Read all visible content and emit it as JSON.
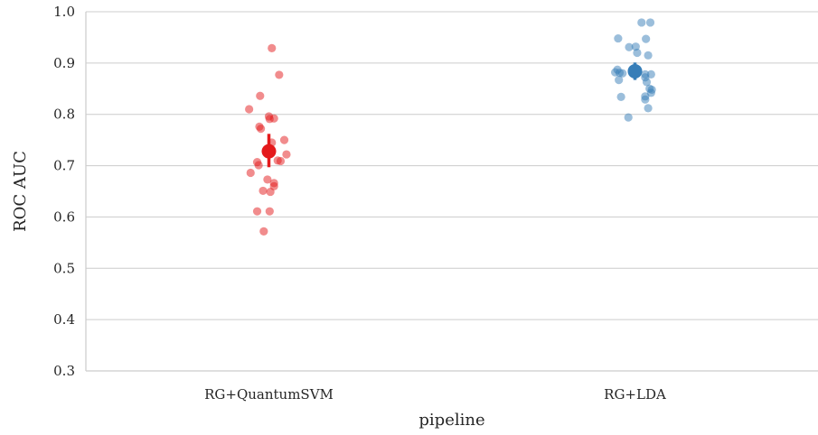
{
  "chart_data": {
    "type": "scatter",
    "xlabel": "pipeline",
    "ylabel": "ROC AUC",
    "ylim": [
      0.3,
      1.0
    ],
    "yticks": [
      "0.3",
      "0.4",
      "0.5",
      "0.6",
      "0.7",
      "0.8",
      "0.9",
      "1.0"
    ],
    "grid": "horizontal",
    "categories": [
      "RG+QuantumSVM",
      "RG+LDA"
    ],
    "series": [
      {
        "category": "RG+QuantumSVM",
        "color": "#e41a1c",
        "mean": 0.728,
        "ci": [
          0.697,
          0.762
        ],
        "points": [
          {
            "jitter": 0.04,
            "y": 0.929
          },
          {
            "jitter": 0.14,
            "y": 0.877
          },
          {
            "jitter": -0.12,
            "y": 0.836
          },
          {
            "jitter": -0.27,
            "y": 0.81
          },
          {
            "jitter": 0.0,
            "y": 0.796
          },
          {
            "jitter": 0.01,
            "y": 0.791
          },
          {
            "jitter": 0.07,
            "y": 0.792
          },
          {
            "jitter": -0.13,
            "y": 0.776
          },
          {
            "jitter": -0.11,
            "y": 0.772
          },
          {
            "jitter": 0.21,
            "y": 0.75
          },
          {
            "jitter": 0.04,
            "y": 0.745
          },
          {
            "jitter": 0.24,
            "y": 0.722
          },
          {
            "jitter": 0.12,
            "y": 0.71
          },
          {
            "jitter": 0.16,
            "y": 0.709
          },
          {
            "jitter": -0.16,
            "y": 0.707
          },
          {
            "jitter": -0.14,
            "y": 0.701
          },
          {
            "jitter": -0.25,
            "y": 0.686
          },
          {
            "jitter": -0.02,
            "y": 0.673
          },
          {
            "jitter": 0.07,
            "y": 0.666
          },
          {
            "jitter": 0.07,
            "y": 0.66
          },
          {
            "jitter": -0.08,
            "y": 0.651
          },
          {
            "jitter": 0.02,
            "y": 0.649
          },
          {
            "jitter": -0.16,
            "y": 0.611
          },
          {
            "jitter": 0.01,
            "y": 0.611
          },
          {
            "jitter": -0.07,
            "y": 0.572
          }
        ]
      },
      {
        "category": "RG+LDA",
        "color": "#377eb8",
        "mean": 0.884,
        "ci": [
          0.867,
          0.901
        ],
        "points": [
          {
            "jitter": 0.09,
            "y": 0.979
          },
          {
            "jitter": 0.21,
            "y": 0.979
          },
          {
            "jitter": -0.23,
            "y": 0.948
          },
          {
            "jitter": 0.15,
            "y": 0.947
          },
          {
            "jitter": -0.08,
            "y": 0.931
          },
          {
            "jitter": 0.01,
            "y": 0.932
          },
          {
            "jitter": 0.03,
            "y": 0.92
          },
          {
            "jitter": 0.18,
            "y": 0.915
          },
          {
            "jitter": -0.24,
            "y": 0.887
          },
          {
            "jitter": -0.27,
            "y": 0.882
          },
          {
            "jitter": -0.21,
            "y": 0.881
          },
          {
            "jitter": -0.17,
            "y": 0.88
          },
          {
            "jitter": 0.14,
            "y": 0.878
          },
          {
            "jitter": 0.22,
            "y": 0.878
          },
          {
            "jitter": 0.14,
            "y": 0.872
          },
          {
            "jitter": -0.22,
            "y": 0.867
          },
          {
            "jitter": 0.16,
            "y": 0.863
          },
          {
            "jitter": 0.2,
            "y": 0.85
          },
          {
            "jitter": 0.23,
            "y": 0.848
          },
          {
            "jitter": 0.22,
            "y": 0.842
          },
          {
            "jitter": 0.14,
            "y": 0.835
          },
          {
            "jitter": -0.19,
            "y": 0.834
          },
          {
            "jitter": 0.14,
            "y": 0.829
          },
          {
            "jitter": 0.18,
            "y": 0.812
          },
          {
            "jitter": -0.09,
            "y": 0.794
          }
        ]
      }
    ]
  }
}
